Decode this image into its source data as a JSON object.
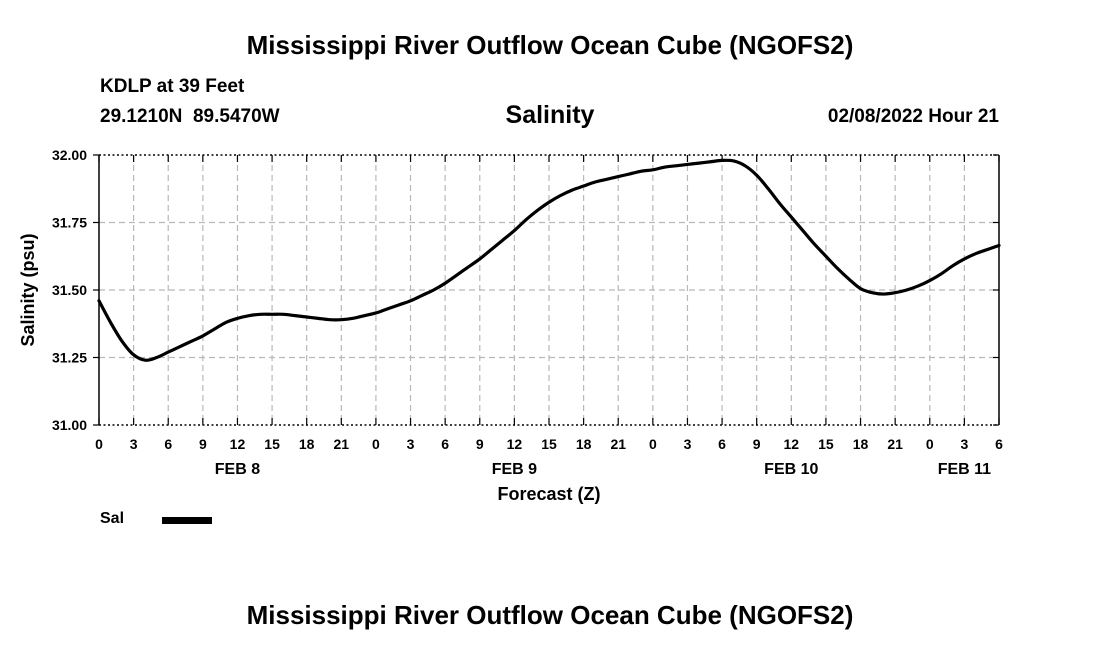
{
  "page_title": "Mississippi River Outflow Ocean Cube (NGOFS2)",
  "station": {
    "name_line": "KDLP at 39 Feet",
    "coords_line": "29.1210N  89.5470W"
  },
  "valid_time": "02/08/2022 Hour 21",
  "footer_title": "Mississippi River Outflow Ocean Cube (NGOFS2)",
  "chart_data": {
    "type": "line",
    "title": "Salinity",
    "xlabel": "Forecast (Z)",
    "ylabel": "Salinity (psu)",
    "ylim": [
      31.0,
      32.0
    ],
    "xlim": [
      0,
      78
    ],
    "x_unit": "hours from 00Z Feb 8",
    "y_ticks": [
      31.0,
      31.25,
      31.5,
      31.75,
      32.0
    ],
    "y_tick_labels": [
      "31.00",
      "31.25",
      "31.50",
      "31.75",
      "32.00"
    ],
    "x_ticks": [
      0,
      3,
      6,
      9,
      12,
      15,
      18,
      21,
      24,
      27,
      30,
      33,
      36,
      39,
      42,
      45,
      48,
      51,
      54,
      57,
      60,
      63,
      66,
      69,
      72,
      75,
      78
    ],
    "x_tick_labels": [
      "0",
      "3",
      "6",
      "9",
      "12",
      "15",
      "18",
      "21",
      "0",
      "3",
      "6",
      "9",
      "12",
      "15",
      "18",
      "21",
      "0",
      "3",
      "6",
      "9",
      "12",
      "15",
      "18",
      "21",
      "0",
      "3",
      "6"
    ],
    "date_labels": [
      {
        "x": 12,
        "label": "FEB 8"
      },
      {
        "x": 36,
        "label": "FEB 9"
      },
      {
        "x": 60,
        "label": "FEB 10"
      },
      {
        "x": 75,
        "label": "FEB 11"
      }
    ],
    "grid": true,
    "legend_position": "bottom-left",
    "series": [
      {
        "name": "Sal",
        "color": "#000000",
        "x": [
          0,
          1,
          2,
          3,
          4,
          5,
          6,
          7,
          8,
          9,
          10,
          11,
          12,
          13,
          14,
          15,
          16,
          17,
          18,
          19,
          20,
          21,
          22,
          23,
          24,
          25,
          26,
          27,
          28,
          29,
          30,
          31,
          32,
          33,
          34,
          35,
          36,
          37,
          38,
          39,
          40,
          41,
          42,
          43,
          44,
          45,
          46,
          47,
          48,
          49,
          50,
          51,
          52,
          53,
          54,
          55,
          56,
          57,
          58,
          59,
          60,
          61,
          62,
          63,
          64,
          65,
          66,
          67,
          68,
          69,
          70,
          71,
          72,
          73,
          74,
          75,
          76,
          77,
          78
        ],
        "values": [
          31.46,
          31.38,
          31.31,
          31.26,
          31.24,
          31.25,
          31.27,
          31.29,
          31.31,
          31.33,
          31.355,
          31.38,
          31.395,
          31.405,
          31.41,
          31.41,
          31.41,
          31.405,
          31.4,
          31.395,
          31.39,
          31.39,
          31.395,
          31.405,
          31.415,
          31.43,
          31.445,
          31.46,
          31.48,
          31.5,
          31.525,
          31.555,
          31.585,
          31.615,
          31.65,
          31.685,
          31.72,
          31.76,
          31.795,
          31.825,
          31.85,
          31.87,
          31.885,
          31.9,
          31.91,
          31.92,
          31.93,
          31.94,
          31.945,
          31.955,
          31.96,
          31.965,
          31.97,
          31.975,
          31.98,
          31.978,
          31.96,
          31.925,
          31.875,
          31.82,
          31.77,
          31.72,
          31.67,
          31.625,
          31.58,
          31.54,
          31.505,
          31.49,
          31.485,
          31.49,
          31.5,
          31.515,
          31.535,
          31.56,
          31.59,
          31.615,
          31.635,
          31.65,
          31.665
        ]
      }
    ]
  }
}
